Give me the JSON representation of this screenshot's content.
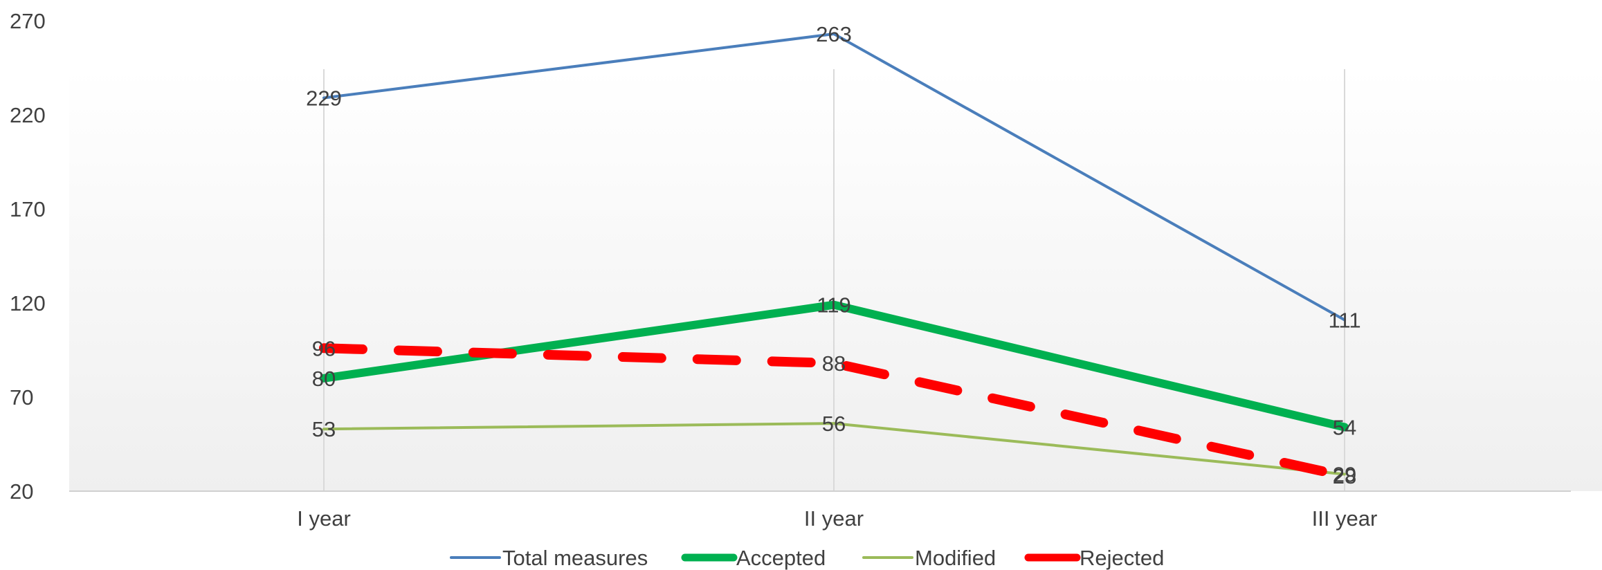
{
  "chart_data": {
    "type": "line",
    "title": "",
    "xlabel": "",
    "ylabel": "",
    "categories": [
      "I year",
      "II year",
      "III year"
    ],
    "ylim": [
      20,
      270
    ],
    "yticks": [
      20,
      70,
      120,
      170,
      220,
      270
    ],
    "grid": "vertical category lines",
    "legend": "bottom",
    "series": [
      {
        "name": "Total measures",
        "values": [
          229,
          263,
          111
        ],
        "color": "#4a7ebb",
        "style": "thin-solid"
      },
      {
        "name": "Accepted",
        "values": [
          80,
          119,
          54
        ],
        "color": "#00b050",
        "style": "thick-solid"
      },
      {
        "name": "Modified",
        "values": [
          53,
          56,
          29
        ],
        "color": "#9bbb59",
        "style": "thin-solid"
      },
      {
        "name": "Rejected",
        "values": [
          96,
          88,
          28
        ],
        "color": "#ff0000",
        "style": "thick-dashed"
      }
    ]
  }
}
